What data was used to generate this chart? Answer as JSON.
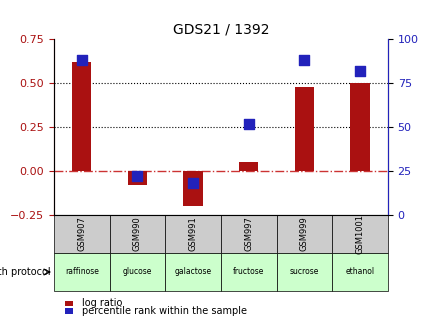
{
  "title": "GDS21 / 1392",
  "categories": [
    "GSM907",
    "GSM990",
    "GSM991",
    "GSM997",
    "GSM999",
    "GSM1001"
  ],
  "protocols": [
    "raffinose",
    "glucose",
    "galactose",
    "fructose",
    "sucrose",
    "ethanol"
  ],
  "log_ratio": [
    0.62,
    -0.08,
    -0.2,
    0.05,
    0.48,
    0.5
  ],
  "percentile_rank": [
    88,
    22,
    18,
    52,
    88,
    82
  ],
  "left_ylim": [
    -0.25,
    0.75
  ],
  "right_ylim": [
    0,
    100
  ],
  "left_yticks": [
    -0.25,
    0,
    0.25,
    0.5,
    0.75
  ],
  "right_yticks": [
    0,
    25,
    50,
    75,
    100
  ],
  "bar_color": "#aa1111",
  "dot_color": "#2222bb",
  "grid_color": "#000000",
  "zero_line_color": "#cc3333",
  "protocol_colors": [
    "#ccffcc",
    "#ccffcc",
    "#ccffcc",
    "#ccffcc",
    "#ccffcc",
    "#ccffcc"
  ],
  "label_log_ratio": "log ratio",
  "label_percentile": "percentile rank within the sample",
  "growth_protocol_label": "growth protocol",
  "bar_width": 0.35,
  "dot_size": 50
}
